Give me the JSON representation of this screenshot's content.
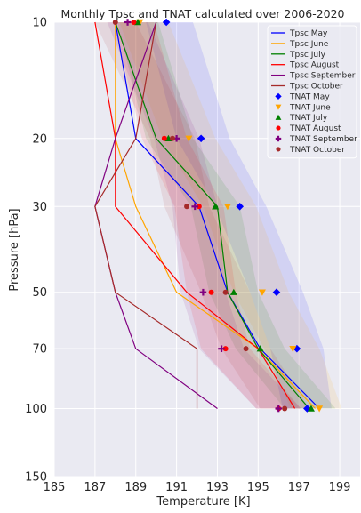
{
  "chart_data": {
    "type": "line",
    "title": "Monthly Tpsc and TNAT calculated over 2006-2020",
    "xlabel": "Temperature [K]",
    "ylabel": "Pressure [hPa]",
    "xlim": [
      185,
      200
    ],
    "ylim_pressure": [
      150,
      10
    ],
    "y_scale": "log",
    "x_ticks": [
      185,
      187,
      189,
      191,
      193,
      195,
      197,
      199
    ],
    "y_ticks": [
      10,
      20,
      30,
      50,
      70,
      100,
      150
    ],
    "grid": true,
    "background": "#eaeaf2",
    "legend_position": "top-right",
    "pressure_levels": [
      10,
      20,
      30,
      50,
      70,
      100
    ],
    "tpsc_series": [
      {
        "name": "Tpsc May",
        "color": "#0000ff",
        "x": [
          188.0,
          189.0,
          192.1,
          193.5,
          195.1,
          198.0
        ]
      },
      {
        "name": "Tpsc June",
        "color": "#ffa500",
        "x": [
          188.0,
          188.0,
          189.0,
          191.0,
          195.0,
          197.8
        ]
      },
      {
        "name": "Tpsc July",
        "color": "#008000",
        "x": [
          188.0,
          190.0,
          193.0,
          193.5,
          195.0,
          197.5
        ]
      },
      {
        "name": "Tpsc August",
        "color": "#ff0000",
        "x": [
          187.0,
          188.0,
          188.0,
          191.5,
          195.0,
          196.8
        ]
      },
      {
        "name": "Tpsc September",
        "color": "#800080",
        "x": [
          190.0,
          188.0,
          187.0,
          188.0,
          189.0,
          193.0
        ]
      },
      {
        "name": "Tpsc October",
        "color": "#a52a2a",
        "x": [
          190.0,
          189.0,
          187.0,
          188.0,
          192.0,
          192.0
        ]
      }
    ],
    "tnat_series": [
      {
        "name": "TNAT May",
        "color": "#0000ff",
        "marker": "diamond",
        "x": [
          190.5,
          192.2,
          194.1,
          195.9,
          196.9,
          197.4
        ],
        "band": [
          [
            189.5,
            191.8
          ],
          [
            191.0,
            193.6
          ],
          [
            192.9,
            195.4
          ],
          [
            194.6,
            197.2
          ],
          [
            195.6,
            198.2
          ],
          [
            196.2,
            198.6
          ]
        ]
      },
      {
        "name": "TNAT June",
        "color": "#ffa500",
        "marker": "triangle-down",
        "x": [
          189.2,
          191.6,
          193.5,
          195.2,
          196.7,
          198.0
        ],
        "band": [
          [
            188.2,
            190.6
          ],
          [
            190.3,
            192.9
          ],
          [
            192.3,
            194.9
          ],
          [
            193.8,
            196.5
          ],
          [
            195.3,
            198.0
          ],
          [
            196.6,
            199.1
          ]
        ]
      },
      {
        "name": "TNAT July",
        "color": "#008000",
        "marker": "triangle-up",
        "x": [
          189.1,
          190.6,
          192.9,
          193.8,
          195.1,
          197.6
        ],
        "band": [
          [
            188.1,
            190.1
          ],
          [
            189.5,
            191.8
          ],
          [
            191.7,
            194.1
          ],
          [
            192.6,
            195.0
          ],
          [
            193.9,
            196.3
          ],
          [
            196.3,
            198.8
          ]
        ]
      },
      {
        "name": "TNAT August",
        "color": "#ff0000",
        "marker": "circle",
        "x": [
          188.9,
          190.4,
          192.1,
          192.7,
          193.4,
          196.0
        ],
        "band": [
          [
            187.9,
            189.9
          ],
          [
            189.3,
            191.5
          ],
          [
            190.9,
            193.3
          ],
          [
            191.5,
            193.9
          ],
          [
            192.2,
            194.6
          ],
          [
            194.9,
            197.1
          ]
        ]
      },
      {
        "name": "TNAT September",
        "color": "#800080",
        "marker": "plus",
        "x": [
          188.6,
          191.0,
          191.9,
          192.3,
          193.2,
          196.0
        ],
        "band": [
          [
            187.6,
            189.6
          ],
          [
            189.9,
            192.1
          ],
          [
            190.8,
            193.0
          ],
          [
            191.2,
            193.4
          ],
          [
            192.1,
            194.3
          ],
          [
            194.9,
            197.1
          ]
        ]
      },
      {
        "name": "TNAT October",
        "color": "#a52a2a",
        "marker": "circle",
        "x": [
          188.0,
          190.8,
          191.5,
          193.4,
          194.4,
          196.3
        ],
        "band": [
          [
            187.0,
            189.0
          ],
          [
            189.7,
            191.9
          ],
          [
            190.4,
            192.6
          ],
          [
            192.2,
            194.6
          ],
          [
            193.2,
            195.6
          ],
          [
            195.1,
            197.5
          ]
        ]
      }
    ],
    "band_series_order": [
      0,
      1,
      2,
      3,
      4,
      5
    ]
  }
}
